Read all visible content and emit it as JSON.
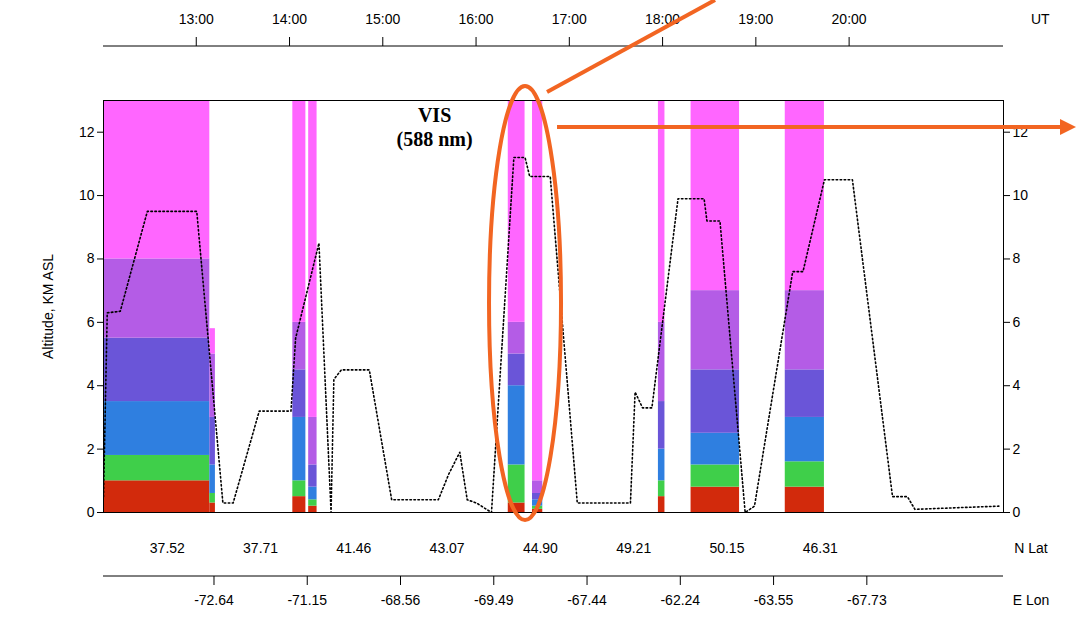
{
  "chart_data": {
    "type": "curtain",
    "xlabel": "UT",
    "ylabel": "Altitude, KM ASL",
    "xlim": [
      12.0,
      21.65
    ],
    "xticks": [
      {
        "value": 13,
        "label": "13:00"
      },
      {
        "value": 14,
        "label": "14:00"
      },
      {
        "value": 15,
        "label": "15:00"
      },
      {
        "value": 16,
        "label": "16:00"
      },
      {
        "value": 17,
        "label": "17:00"
      },
      {
        "value": 18,
        "label": "18:00"
      },
      {
        "value": 19,
        "label": "19:00"
      },
      {
        "value": 20,
        "label": "20:00"
      }
    ],
    "ylim": [
      0,
      13
    ],
    "yticks": [
      0,
      2,
      4,
      6,
      8,
      10,
      12
    ],
    "lat_axis": {
      "label": "N Lat",
      "ticks": [
        {
          "value": 12.69,
          "label": "37.52"
        },
        {
          "value": 13.69,
          "label": "37.71"
        },
        {
          "value": 14.69,
          "label": "41.46"
        },
        {
          "value": 15.69,
          "label": "43.07"
        },
        {
          "value": 16.69,
          "label": "44.90"
        },
        {
          "value": 17.69,
          "label": "49.21"
        },
        {
          "value": 18.69,
          "label": "50.15"
        },
        {
          "value": 19.69,
          "label": "46.31"
        }
      ]
    },
    "lon_axis": {
      "label": "E Lon",
      "ticks": [
        {
          "value": 13.19,
          "label": "-72.64"
        },
        {
          "value": 14.19,
          "label": "-71.15"
        },
        {
          "value": 15.19,
          "label": "-68.56"
        },
        {
          "value": 16.19,
          "label": "-69.49"
        },
        {
          "value": 17.19,
          "label": "-67.44"
        },
        {
          "value": 18.19,
          "label": "-62.24"
        },
        {
          "value": 19.19,
          "label": "-63.55"
        },
        {
          "value": 20.19,
          "label": "-67.73"
        }
      ]
    },
    "curtain": {
      "colors": [
        "#d22a0c",
        "#3fcf4a",
        "#2f7fe0",
        "#6a55d8",
        "#b45ce6",
        "#ff66ff"
      ],
      "segments": [
        {
          "x": [
            12.0,
            13.14
          ],
          "tops": [
            1.0,
            1.8,
            3.5,
            5.5,
            8.0,
            13
          ]
        },
        {
          "x": [
            13.14,
            13.2
          ],
          "tops": [
            0.3,
            0.6,
            1.5,
            3.0,
            5.0,
            5.8
          ]
        },
        {
          "x": [
            14.03,
            14.17
          ],
          "tops": [
            0.5,
            1.0,
            3.0,
            4.5,
            6.0,
            13
          ]
        },
        {
          "x": [
            14.2,
            14.29
          ],
          "tops": [
            0.2,
            0.4,
            0.8,
            1.5,
            3.0,
            13
          ]
        },
        {
          "x": [
            16.34,
            16.52
          ],
          "tops": [
            0.3,
            1.5,
            4.0,
            5.0,
            6.0,
            13
          ]
        },
        {
          "x": [
            16.6,
            16.71
          ],
          "tops": [
            0.1,
            0.2,
            0.4,
            0.6,
            1.0,
            13
          ]
        },
        {
          "x": [
            17.95,
            18.02
          ],
          "tops": [
            0.5,
            1.0,
            2.0,
            3.5,
            6.0,
            13
          ]
        },
        {
          "x": [
            18.3,
            18.82
          ],
          "tops": [
            0.8,
            1.5,
            2.5,
            4.5,
            7.0,
            13
          ]
        },
        {
          "x": [
            19.31,
            19.73
          ],
          "tops": [
            0.8,
            1.6,
            3.0,
            4.5,
            7.0,
            13
          ]
        }
      ]
    },
    "series": [
      {
        "color": "#000000",
        "line_style": "dotted",
        "x": [
          12.0,
          12.04,
          12.18,
          12.47,
          13.0,
          13.28,
          13.39,
          13.67,
          14.01,
          14.06,
          14.31,
          14.44,
          14.47,
          14.55,
          14.85,
          15.09,
          15.59,
          15.7,
          15.82,
          15.9,
          16.0,
          16.16,
          16.4,
          16.52,
          16.57,
          16.79,
          17.08,
          17.65,
          17.7,
          17.78,
          17.88,
          18.16,
          18.44,
          18.47,
          18.61,
          18.88,
          18.98,
          19.39,
          19.5,
          19.73,
          20.03,
          20.46,
          20.62,
          20.7,
          21.6
        ],
        "values": [
          0.5,
          6.3,
          6.35,
          9.5,
          9.5,
          0.3,
          0.3,
          3.2,
          3.2,
          5.5,
          8.5,
          0.0,
          4.2,
          4.5,
          4.5,
          0.4,
          0.4,
          1.2,
          1.9,
          0.4,
          0.3,
          0.0,
          11.2,
          11.2,
          10.6,
          10.6,
          0.3,
          0.3,
          3.8,
          3.3,
          3.3,
          9.9,
          9.9,
          9.2,
          9.2,
          0.0,
          0.2,
          7.6,
          7.6,
          10.5,
          10.5,
          0.5,
          0.5,
          0.1,
          0.2
        ]
      }
    ],
    "annotation": {
      "text": "VIS (588 nm)",
      "x": 15.55,
      "y": 12.2
    }
  }
}
